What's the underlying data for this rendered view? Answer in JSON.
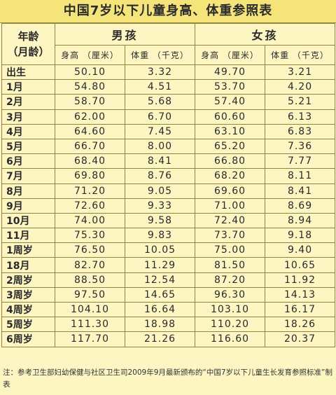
{
  "title": "中国7岁以下儿童身高、体重参照表",
  "header": {
    "age_line1": "年龄",
    "age_line2": "（月龄）",
    "boys": "男孩",
    "girls": "女孩",
    "height_label": "身高 （厘米）",
    "weight_label": "体重 （千克）"
  },
  "columns": [
    "年龄（月龄）",
    "男孩 身高（厘米）",
    "男孩 体重（千克）",
    "女孩 身高（厘米）",
    "女孩 体重（千克）"
  ],
  "rows": [
    {
      "age": "出生",
      "boy_height": "50.10",
      "boy_weight": "3.32",
      "girl_height": "49.70",
      "girl_weight": "3.21"
    },
    {
      "age": "1月",
      "boy_height": "54.80",
      "boy_weight": "4.51",
      "girl_height": "53.70",
      "girl_weight": "4.20"
    },
    {
      "age": "2月",
      "boy_height": "58.70",
      "boy_weight": "5.68",
      "girl_height": "57.40",
      "girl_weight": "5.21"
    },
    {
      "age": "3月",
      "boy_height": "62.00",
      "boy_weight": "6.70",
      "girl_height": "60.60",
      "girl_weight": "6.13"
    },
    {
      "age": "4月",
      "boy_height": "64.60",
      "boy_weight": "7.45",
      "girl_height": "63.10",
      "girl_weight": "6.83"
    },
    {
      "age": "5月",
      "boy_height": "66.70",
      "boy_weight": "8.00",
      "girl_height": "65.20",
      "girl_weight": "7.36"
    },
    {
      "age": "6月",
      "boy_height": "68.40",
      "boy_weight": "8.41",
      "girl_height": "66.80",
      "girl_weight": "7.77"
    },
    {
      "age": "7月",
      "boy_height": "69.80",
      "boy_weight": "8.76",
      "girl_height": "68.20",
      "girl_weight": "8.11"
    },
    {
      "age": "8月",
      "boy_height": "71.20",
      "boy_weight": "9.05",
      "girl_height": "69.60",
      "girl_weight": "8.41"
    },
    {
      "age": "9月",
      "boy_height": "72.60",
      "boy_weight": "9.33",
      "girl_height": "71.00",
      "girl_weight": "8.69"
    },
    {
      "age": "10月",
      "boy_height": "74.00",
      "boy_weight": "9.58",
      "girl_height": "72.40",
      "girl_weight": "8.94"
    },
    {
      "age": "11月",
      "boy_height": "75.30",
      "boy_weight": "9.83",
      "girl_height": "73.70",
      "girl_weight": "9.18"
    },
    {
      "age": "1周岁",
      "boy_height": "76.50",
      "boy_weight": "10.05",
      "girl_height": "75.00",
      "girl_weight": "9.40"
    },
    {
      "age": "18月",
      "boy_height": "82.70",
      "boy_weight": "11.29",
      "girl_height": "81.50",
      "girl_weight": "10.65"
    },
    {
      "age": "2周岁",
      "boy_height": "88.50",
      "boy_weight": "12.54",
      "girl_height": "87.20",
      "girl_weight": "11.92"
    },
    {
      "age": "3周岁",
      "boy_height": "97.50",
      "boy_weight": "14.65",
      "girl_height": "96.30",
      "girl_weight": "14.13"
    },
    {
      "age": "4周岁",
      "boy_height": "104.10",
      "boy_weight": "16.64",
      "girl_height": "103.10",
      "girl_weight": "16.17"
    },
    {
      "age": "5周岁",
      "boy_height": "111.30",
      "boy_weight": "18.98",
      "girl_height": "110.20",
      "girl_weight": "18.26"
    },
    {
      "age": "6周岁",
      "boy_height": "117.70",
      "boy_weight": "21.26",
      "girl_height": "116.60",
      "girl_weight": "20.37"
    }
  ],
  "note": "注：参考卫生部妇幼保健与社区卫生司2009年9月最新颁布的“中国7岁以下儿童生长发育参照标准”制表",
  "colors": {
    "background": "#fdf6c3",
    "title_band": "#f5e47a",
    "border": "#8f8440"
  }
}
